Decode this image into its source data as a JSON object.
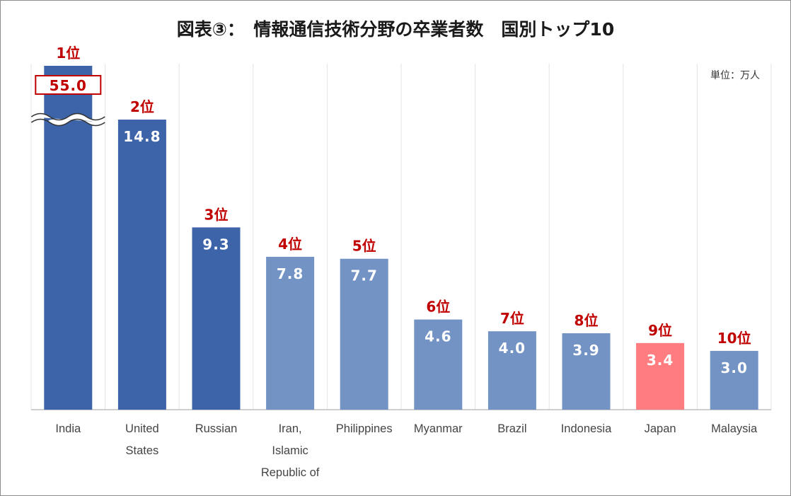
{
  "title": "図表③：　情報通信技術分野の卒業者数　国別トップ10",
  "unit_label": "単位：万人",
  "colors": {
    "top3": "#3d63a8",
    "others": "#7393c4",
    "japan": "#ff7c80",
    "rank_text": "#c00000",
    "value_text": "#ffffff",
    "axis": "#bfbfbf",
    "grid": "#e3e3e3"
  },
  "chart_data": {
    "type": "bar",
    "title": "図表③：　情報通信技術分野の卒業者数　国別トップ10",
    "unit": "単位：万人",
    "categories": [
      "India",
      "United States",
      "Russian",
      "Iran, Islamic Republic of",
      "Philippines",
      "Myanmar",
      "Brazil",
      "Indonesia",
      "Japan",
      "Malaysia"
    ],
    "category_lines": [
      [
        "India"
      ],
      [
        "United",
        "States"
      ],
      [
        "Russian"
      ],
      [
        "Iran,",
        "Islamic",
        "Republic of"
      ],
      [
        "Philippines"
      ],
      [
        "Myanmar"
      ],
      [
        "Brazil"
      ],
      [
        "Indonesia"
      ],
      [
        "Japan"
      ],
      [
        "Malaysia"
      ]
    ],
    "values": [
      55.0,
      14.8,
      9.3,
      7.8,
      7.7,
      4.6,
      4.0,
      3.9,
      3.4,
      3.0
    ],
    "value_labels": [
      "55.0",
      "14.8",
      "9.3",
      "7.8",
      "7.7",
      "4.6",
      "4.0",
      "3.9",
      "3.4",
      "3.0"
    ],
    "ranks": [
      "1位",
      "2位",
      "3位",
      "4位",
      "5位",
      "6位",
      "7位",
      "8位",
      "9位",
      "10位"
    ],
    "axis_break": "India bar truncated with break mark",
    "grid": true,
    "legend": "none"
  }
}
